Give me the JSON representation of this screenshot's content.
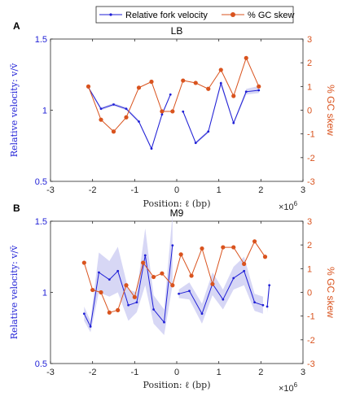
{
  "legend": {
    "entries": [
      {
        "label": "Relative fork velocity",
        "color": "#1f1fd6"
      },
      {
        "label": "% GC skew",
        "color": "#d9531e"
      }
    ]
  },
  "colors": {
    "velocity": "#1f1fd6",
    "skew": "#d9531e",
    "band": "#c9caf2",
    "axis": "#262626"
  },
  "chart_data": [
    {
      "type": "line",
      "panel_letter": "A",
      "title": "LB",
      "xlabel": "Position: ℓ (bp)",
      "x_exponent_label": "×10",
      "x_exponent": "6",
      "ylabel_left": "Relative velocity: v/v̄",
      "ylabel_right": "% GC skew",
      "xlim": [
        -3,
        3
      ],
      "ylim_left": [
        0.5,
        1.5
      ],
      "ylim_right": [
        -3,
        3
      ],
      "xticks": [
        "-3",
        "-2",
        "-1",
        "0",
        "1",
        "2",
        "3"
      ],
      "yticks_left": [
        "0.5",
        "1",
        "1.5"
      ],
      "yticks_right": [
        "-3",
        "-2",
        "-1",
        "0",
        "1",
        "2",
        "3"
      ],
      "series": [
        {
          "name": "Relative fork velocity",
          "axis": "left",
          "segments": [
            {
              "x": [
                -2.1,
                -1.8,
                -1.5,
                -1.2,
                -0.9,
                -0.6,
                -0.35,
                -0.15
              ],
              "y": [
                1.16,
                1.01,
                1.04,
                1.01,
                0.92,
                0.73,
                0.97,
                1.11
              ],
              "lower": [
                1.15,
                1.0,
                1.03,
                1.0,
                0.91,
                0.72,
                0.96,
                1.1
              ],
              "upper": [
                1.17,
                1.02,
                1.05,
                1.02,
                0.93,
                0.74,
                0.98,
                1.12
              ]
            },
            {
              "x": [
                0.15,
                0.45,
                0.75,
                1.05,
                1.35,
                1.65,
                1.95
              ],
              "y": [
                0.99,
                0.77,
                0.85,
                1.19,
                0.91,
                1.13,
                1.14
              ],
              "lower": [
                0.98,
                0.76,
                0.84,
                1.17,
                0.9,
                1.11,
                1.12
              ],
              "upper": [
                1.0,
                0.78,
                0.86,
                1.21,
                0.92,
                1.15,
                1.17
              ]
            }
          ]
        },
        {
          "name": "% GC skew",
          "axis": "right",
          "x": [
            -2.1,
            -1.8,
            -1.5,
            -1.2,
            -0.9,
            -0.6,
            -0.35,
            -0.1,
            0.15,
            0.45,
            0.75,
            1.05,
            1.35,
            1.65,
            1.95
          ],
          "y": [
            1.0,
            -0.4,
            -0.9,
            -0.3,
            0.95,
            1.2,
            -0.05,
            -0.05,
            1.25,
            1.15,
            0.9,
            1.7,
            0.6,
            2.2,
            1.0
          ]
        }
      ]
    },
    {
      "type": "line",
      "panel_letter": "B",
      "title": "M9",
      "xlabel": "Position: ℓ (bp)",
      "x_exponent_label": "×10",
      "x_exponent": "6",
      "ylabel_left": "Relative velocity: v/v̄",
      "ylabel_right": "% GC skew",
      "xlim": [
        -3,
        3
      ],
      "ylim_left": [
        0.5,
        1.5
      ],
      "ylim_right": [
        -3,
        3
      ],
      "xticks": [
        "-3",
        "-2",
        "-1",
        "0",
        "1",
        "2",
        "3"
      ],
      "yticks_left": [
        "0.5",
        "1",
        "1.5"
      ],
      "yticks_right": [
        "-3",
        "-2",
        "-1",
        "0",
        "1",
        "2",
        "3"
      ],
      "series": [
        {
          "name": "Relative fork velocity",
          "axis": "left",
          "segments": [
            {
              "x": [
                -2.2,
                -2.05,
                -1.85,
                -1.6,
                -1.4,
                -1.15,
                -0.95,
                -0.75,
                -0.55,
                -0.3,
                -0.1
              ],
              "y": [
                0.85,
                0.76,
                1.14,
                1.09,
                1.15,
                0.91,
                0.93,
                1.26,
                0.88,
                0.79,
                1.33
              ],
              "lower": [
                0.8,
                0.72,
                1.0,
                0.97,
                1.0,
                0.8,
                0.86,
                1.05,
                0.78,
                0.7,
                1.05
              ],
              "upper": [
                0.9,
                0.8,
                1.28,
                1.22,
                1.32,
                1.02,
                1.0,
                1.45,
                0.98,
                0.88,
                1.55
              ]
            },
            {
              "x": [
                0.05,
                0.3,
                0.6,
                0.85,
                1.1,
                1.35,
                1.6,
                1.85,
                2.05
              ],
              "y": [
                0.99,
                1.01,
                0.85,
                1.06,
                0.95,
                1.1,
                1.15,
                0.93,
                0.91
              ],
              "lower": [
                0.96,
                0.95,
                0.78,
                0.98,
                0.88,
                1.02,
                1.05,
                0.87,
                0.85
              ],
              "upper": [
                1.02,
                1.07,
                0.92,
                1.14,
                1.02,
                1.18,
                1.25,
                0.99,
                0.97
              ]
            },
            {
              "x": [
                2.15,
                2.2
              ],
              "y": [
                0.9,
                1.05
              ],
              "lower": [
                0.86,
                1.0
              ],
              "upper": [
                0.94,
                1.1
              ]
            }
          ]
        },
        {
          "name": "% GC skew",
          "axis": "right",
          "x": [
            -2.2,
            -2.0,
            -1.8,
            -1.6,
            -1.4,
            -1.2,
            -1.0,
            -0.8,
            -0.55,
            -0.35,
            -0.1,
            0.1,
            0.35,
            0.6,
            0.85,
            1.1,
            1.35,
            1.6,
            1.85,
            2.1
          ],
          "y": [
            1.25,
            0.1,
            0.0,
            -0.85,
            -0.75,
            0.3,
            -0.2,
            1.25,
            0.65,
            0.8,
            0.3,
            1.6,
            0.7,
            1.85,
            0.35,
            1.9,
            1.9,
            1.2,
            2.15,
            1.5
          ]
        }
      ]
    }
  ]
}
